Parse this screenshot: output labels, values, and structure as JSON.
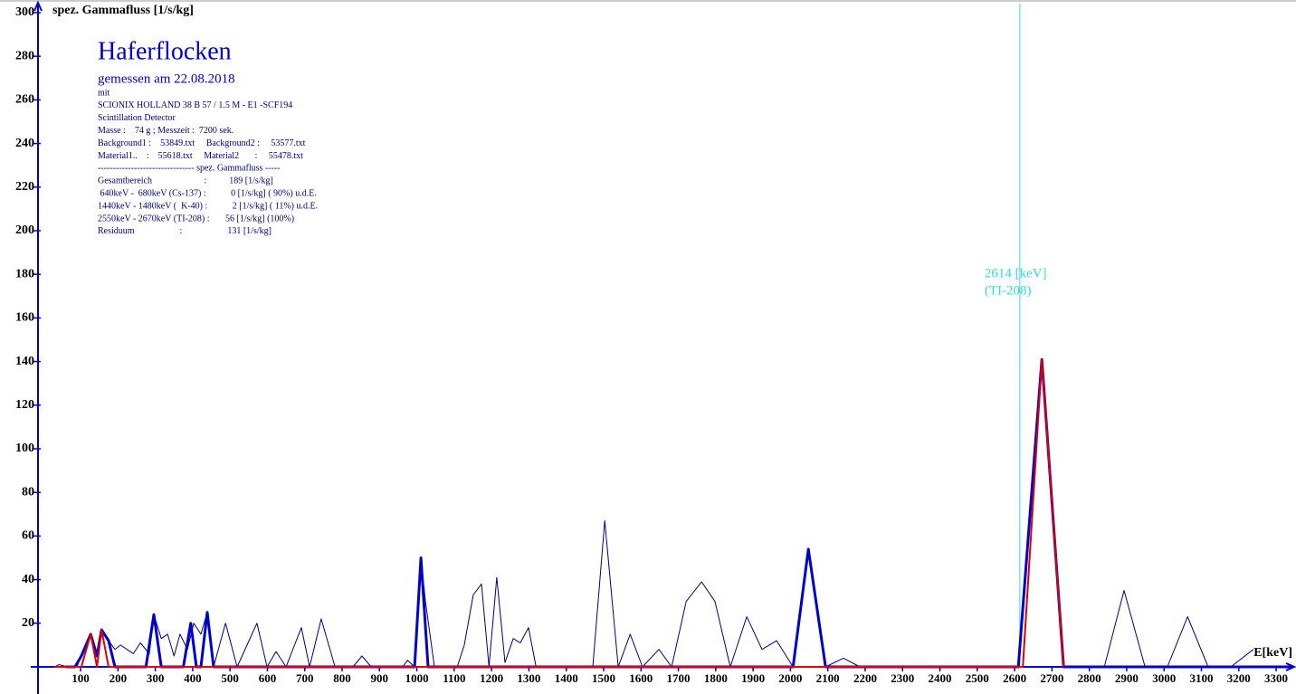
{
  "chart_data": {
    "type": "line",
    "title": "Haferflocken",
    "subtitle": "gemessen am 22.08.2018",
    "info_lines": [
      "mit",
      "SCIONIX HOLLAND 38 B 57 / 1.5 M - E1 -SCF194",
      "Scintillation Detector",
      "Masse :    74 g ; Messzeit :  7200 sek.",
      "Background1 :    53849.txt     Background2 :     53577.txt",
      "Material1..    :    55618.txt     Material2       :     55478.txt",
      "-------------------------------- spez. Gammafluss -----",
      "Gesamtbereich                       :          189 [1/s/kg]",
      " 640keV -  680keV (Cs-137) :           0 [1/s/kg] ( 90%) u.d.E.",
      "1440keV - 1480keV (  K-40) :           2 [1/s/kg] ( 11%) u.d.E.",
      "2550keV - 2670keV (TI-208) :       56 [1/s/kg] (100%)",
      "Residuum                    :                    131 [1/s/kg]"
    ],
    "y_label": "spez. Gammafluss [1/s/kg]",
    "x_label": "E[keV]",
    "xlim": [
      -14,
      3340
    ],
    "ylim": [
      0,
      300
    ],
    "xticks": [
      100,
      200,
      300,
      400,
      500,
      600,
      700,
      800,
      900,
      1000,
      1100,
      1200,
      1300,
      1400,
      1500,
      1600,
      1700,
      1800,
      1900,
      2000,
      2100,
      2200,
      2300,
      2400,
      2500,
      2600,
      2700,
      2800,
      2900,
      3000,
      3100,
      3200,
      3300
    ],
    "yticks": [
      20,
      40,
      60,
      80,
      100,
      120,
      140,
      160,
      180,
      200,
      220,
      240,
      260,
      280,
      300
    ],
    "marker": {
      "x": 2614,
      "labels": [
        "2614 [keV]",
        "(TI-208)"
      ],
      "color": "#33dddd"
    },
    "series": [
      {
        "color": "#000080",
        "width": 1,
        "x": [
          30,
          42,
          66,
          90,
          102,
          127,
          144,
          156,
          175,
          192,
          207,
          224,
          241,
          260,
          284,
          296,
          316,
          333,
          350,
          366,
          386,
          403,
          422,
          439,
          456,
          488,
          519,
          572,
          599,
          623,
          650,
          691,
          713,
          744,
          781,
          829,
          853,
          878,
          962,
          975,
          994,
          1011,
          1023,
          1047,
          1108,
          1127,
          1151,
          1173,
          1193,
          1214,
          1236,
          1258,
          1277,
          1299,
          1319,
          1471,
          1503,
          1539,
          1571,
          1604,
          1648,
          1682,
          1721,
          1762,
          1798,
          1839,
          1883,
          1924,
          1963,
          2007,
          2048,
          2094,
          2142,
          2186,
          2610,
          2622,
          2673,
          2731,
          2840,
          2893,
          2949,
          3009,
          3063,
          3118,
          3179,
          3239
        ],
        "values": [
          0,
          1,
          0,
          0,
          5,
          15,
          5,
          17,
          12,
          8,
          10,
          8,
          6,
          11,
          6,
          24,
          13,
          15,
          5,
          15,
          8,
          20,
          15,
          25,
          0,
          20,
          0,
          20,
          0,
          7,
          0,
          18,
          0,
          22,
          0,
          0,
          5,
          0,
          0,
          3,
          0,
          50,
          30,
          0,
          0,
          10,
          33,
          38,
          0,
          41,
          2,
          13,
          11,
          18,
          0,
          0,
          67,
          0,
          15,
          0,
          8,
          0,
          30,
          39,
          30,
          0,
          23,
          8,
          12,
          0,
          54,
          0,
          4,
          0,
          0,
          0,
          141,
          0,
          0,
          35,
          0,
          0,
          23,
          0,
          0,
          8
        ]
      },
      {
        "color": "#0000cc",
        "width": 3,
        "x": [
          60,
          85,
          102,
          127,
          144,
          156,
          175,
          192,
          275,
          296,
          316,
          375,
          395,
          410,
          422,
          439,
          456,
          994,
          1011,
          1030,
          2007,
          2048,
          2094,
          2610,
          2673,
          2731,
          3340
        ],
        "values": [
          0,
          0,
          5,
          15,
          5,
          17,
          12,
          0,
          0,
          24,
          0,
          0,
          20,
          0,
          0,
          25,
          0,
          0,
          50,
          0,
          0,
          54,
          0,
          0,
          141,
          0,
          0
        ]
      },
      {
        "color": "#dd0000",
        "width": 2,
        "x": [
          30,
          102,
          127,
          144,
          156,
          175,
          192,
          2622,
          2673,
          2731
        ],
        "values": [
          0,
          0,
          15,
          0,
          17,
          0,
          0,
          0,
          141,
          0
        ]
      }
    ]
  }
}
